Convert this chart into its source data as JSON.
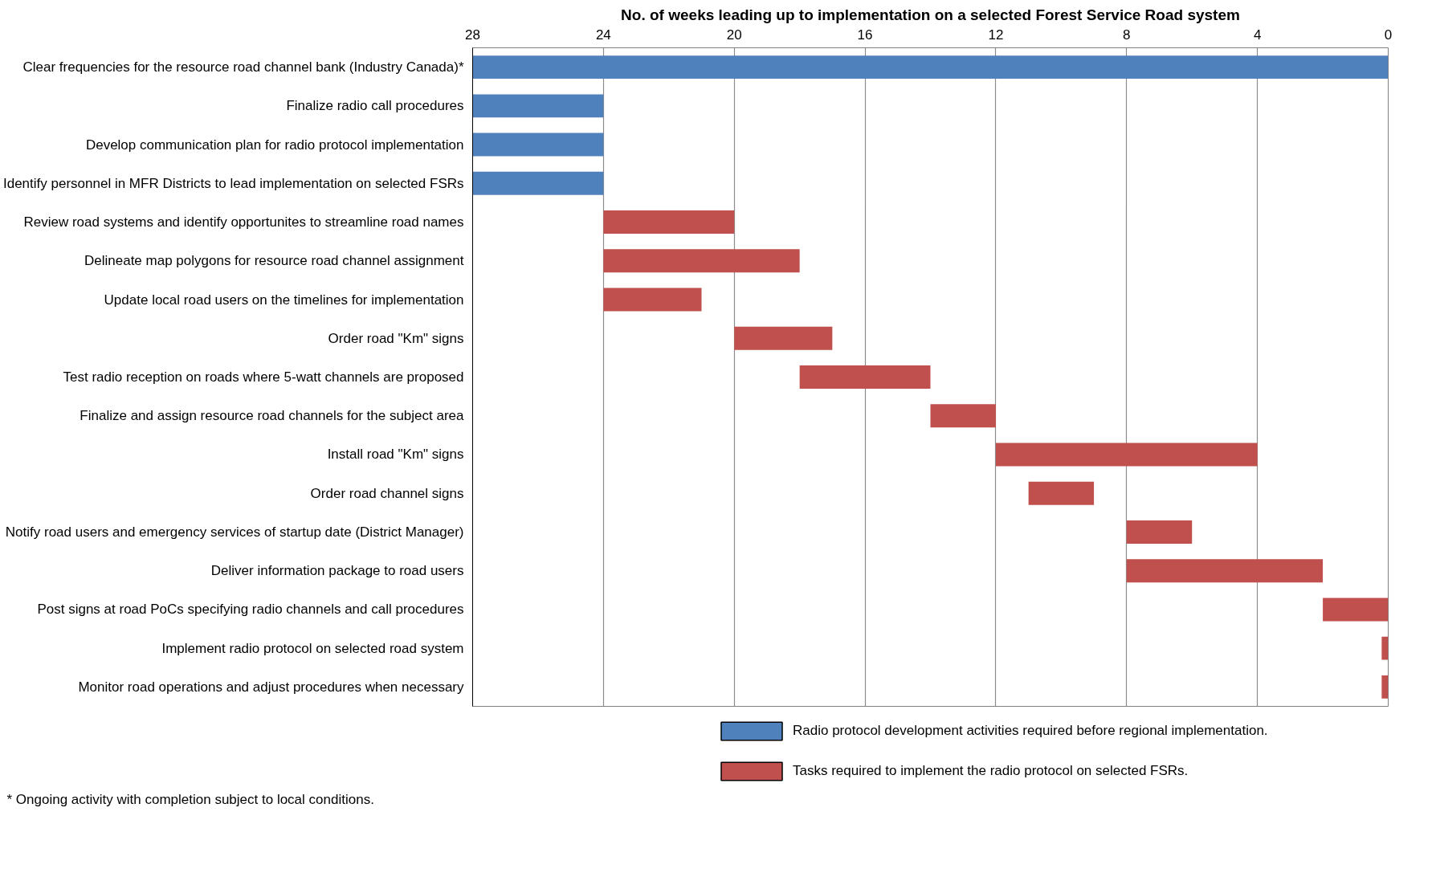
{
  "chart_data": {
    "type": "bar",
    "orientation": "horizontal",
    "title": "No. of weeks leading up to implementation on a selected Forest Service Road system",
    "categories": [
      "Clear frequencies for the resource road channel bank (Industry Canada)*",
      "Finalize radio call procedures",
      "Develop communication plan for radio protocol implementation",
      "Identify personnel in MFR Districts to lead implementation on selected FSRs",
      "Review road systems and identify opportunites to streamline road names",
      "Delineate map polygons for resource road channel assignment",
      "Update local road users on the timelines for implementation",
      "Order road \"Km\" signs",
      "Test radio reception on roads where 5-watt channels are proposed",
      "Finalize and assign resource road channels for the subject area",
      "Install road \"Km\" signs",
      "Order road channel signs",
      "Notify road users and emergency services of startup date (District Manager)",
      "Deliver information package to road users",
      "Post signs at road PoCs specifying radio channels and call procedures",
      "Implement radio protocol on selected road system",
      "Monitor road operations and adjust procedures when necessary"
    ],
    "series": [
      {
        "name": "Radio protocol development activities required before regional implementation.",
        "color": "#4f81bd",
        "base": [
          0,
          24,
          24,
          24,
          null,
          null,
          null,
          null,
          null,
          null,
          null,
          null,
          null,
          null,
          null,
          null,
          null
        ],
        "values": [
          28,
          4,
          4,
          4,
          null,
          null,
          null,
          null,
          null,
          null,
          null,
          null,
          null,
          null,
          null,
          null,
          null
        ]
      },
      {
        "name": "Tasks required to implement the radio protocol on selected FSRs.",
        "color": "#c0504d",
        "base": [
          null,
          null,
          null,
          null,
          20,
          18,
          21,
          17,
          14,
          12,
          4,
          9,
          6,
          2,
          0,
          0,
          0
        ],
        "values": [
          null,
          null,
          null,
          null,
          4,
          6,
          3,
          3,
          4,
          2,
          8,
          2,
          2,
          6,
          2,
          0.2,
          0.2
        ]
      }
    ],
    "xlim": [
      28,
      0
    ],
    "xticks": [
      28,
      24,
      20,
      16,
      12,
      8,
      4,
      0
    ],
    "grid": "x",
    "legend": "bottom",
    "annotations": [
      "* Ongoing activity with completion subject to local conditions."
    ]
  }
}
